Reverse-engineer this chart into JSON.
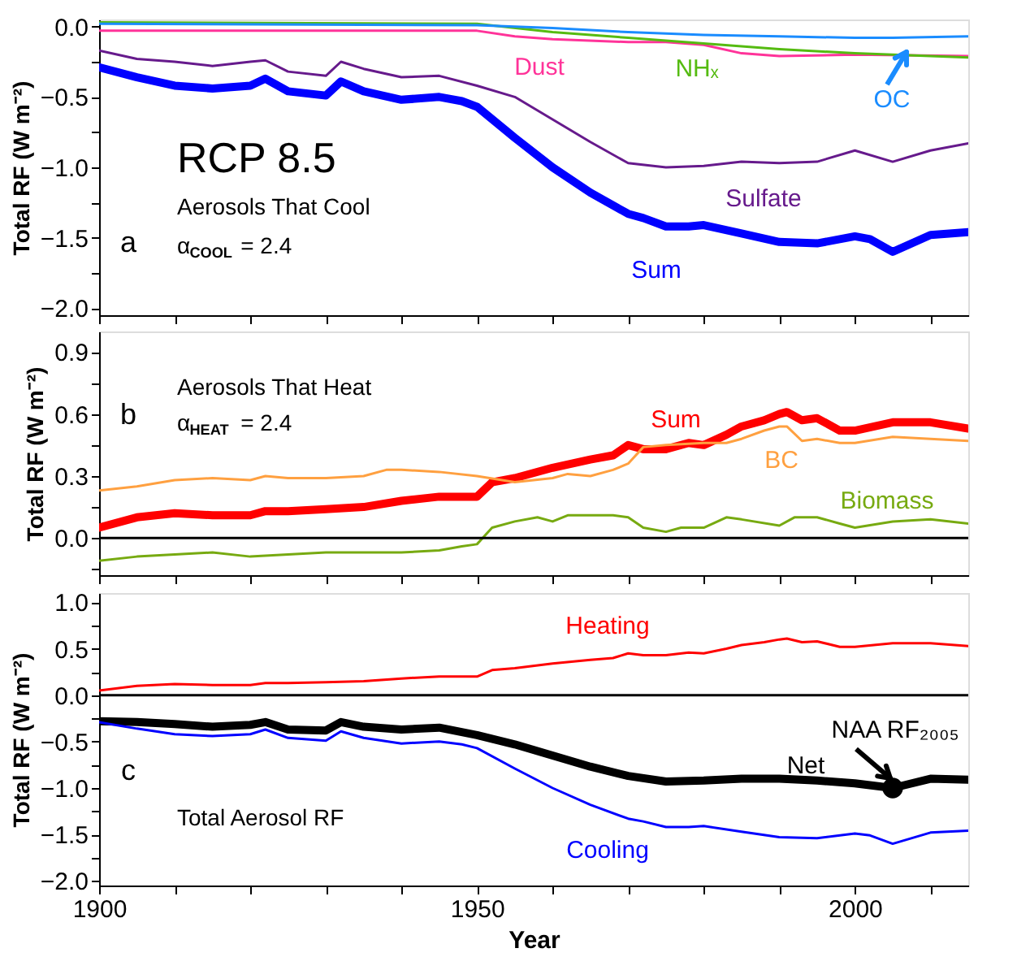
{
  "chart_data": [
    {
      "type": "line",
      "ylabel": "Total RF (W m⁻²)",
      "xlim": [
        1900,
        2015
      ],
      "ylim": [
        -2.05,
        0.05
      ],
      "tick_labels": "y",
      "grid": false,
      "xticks": [
        {
          "value": 1900,
          "label": null
        },
        {
          "value": 1910,
          "label": null
        },
        {
          "value": 1920,
          "label": null
        },
        {
          "value": 1930,
          "label": null
        },
        {
          "value": 1940,
          "label": null
        },
        {
          "value": 1950,
          "label": null
        },
        {
          "value": 1960,
          "label": null
        },
        {
          "value": 1970,
          "label": null
        },
        {
          "value": 1980,
          "label": null
        },
        {
          "value": 1990,
          "label": null
        },
        {
          "value": 2000,
          "label": null
        },
        {
          "value": 2010,
          "label": null
        }
      ],
      "yticks": [
        {
          "value": 0,
          "label": "0.0"
        },
        {
          "value": -0.25,
          "label": null
        },
        {
          "value": -0.5,
          "label": "−0.5"
        },
        {
          "value": -0.75,
          "label": null
        },
        {
          "value": -1.0,
          "label": "−1.0"
        },
        {
          "value": -1.25,
          "label": null
        },
        {
          "value": -1.5,
          "label": "−1.5"
        },
        {
          "value": -1.75,
          "label": null
        },
        {
          "value": -2.0,
          "label": "−2.0"
        }
      ],
      "annotations": [
        "a",
        "RCP 8.5",
        "Aerosols That Cool",
        "α$_{COOL}$ = 2.4"
      ],
      "series": [
        {
          "name": "Sum",
          "color": "#0000ff",
          "x": [
            1900,
            1905,
            1910,
            1915,
            1920,
            1922,
            1925,
            1930,
            1932,
            1935,
            1940,
            1945,
            1948,
            1950,
            1955,
            1960,
            1965,
            1970,
            1972,
            1975,
            1978,
            1980,
            1985,
            1990,
            1995,
            2000,
            2002,
            2005,
            2010,
            2015
          ],
          "values": [
            -0.29,
            -0.36,
            -0.42,
            -0.44,
            -0.42,
            -0.37,
            -0.46,
            -0.49,
            -0.39,
            -0.46,
            -0.52,
            -0.5,
            -0.53,
            -0.57,
            -0.79,
            -1.0,
            -1.18,
            -1.33,
            -1.36,
            -1.42,
            -1.42,
            -1.41,
            -1.47,
            -1.53,
            -1.54,
            -1.49,
            -1.51,
            -1.6,
            -1.48,
            -1.46
          ]
        },
        {
          "name": "Sulfate",
          "color": "#661a8c",
          "x": [
            1900,
            1905,
            1910,
            1915,
            1920,
            1922,
            1925,
            1930,
            1932,
            1935,
            1940,
            1945,
            1950,
            1955,
            1960,
            1965,
            1970,
            1975,
            1980,
            1985,
            1990,
            1995,
            2000,
            2005,
            2010,
            2015
          ],
          "values": [
            -0.17,
            -0.23,
            -0.25,
            -0.28,
            -0.25,
            -0.24,
            -0.32,
            -0.35,
            -0.25,
            -0.3,
            -0.36,
            -0.35,
            -0.42,
            -0.5,
            -0.66,
            -0.82,
            -0.97,
            -1.0,
            -0.99,
            -0.96,
            -0.97,
            -0.96,
            -0.88,
            -0.96,
            -0.88,
            -0.83
          ]
        },
        {
          "name": "Dust",
          "color": "#ff3399",
          "x": [
            1900,
            1920,
            1940,
            1950,
            1955,
            1960,
            1970,
            1975,
            1980,
            1985,
            1990,
            2000,
            2015
          ],
          "values": [
            -0.03,
            -0.03,
            -0.03,
            -0.03,
            -0.07,
            -0.09,
            -0.11,
            -0.11,
            -0.13,
            -0.19,
            -0.21,
            -0.2,
            -0.21
          ]
        },
        {
          "name": "NHₓ",
          "color": "#55bb11",
          "x": [
            1900,
            1950,
            1960,
            1970,
            1980,
            1990,
            2000,
            2015
          ],
          "values": [
            0.03,
            0.02,
            -0.04,
            -0.08,
            -0.12,
            -0.16,
            -0.19,
            -0.22
          ]
        },
        {
          "name": "OC",
          "color": "#1a8cff",
          "x": [
            1900,
            1950,
            1960,
            1970,
            1980,
            1990,
            2000,
            2005,
            2015
          ],
          "values": [
            0.02,
            0.01,
            -0.01,
            -0.04,
            -0.06,
            -0.07,
            -0.08,
            -0.08,
            -0.07
          ]
        }
      ]
    },
    {
      "type": "line",
      "ylabel": "Total RF (W m⁻²)",
      "xlim": [
        1900,
        2015
      ],
      "ylim": [
        -0.18,
        1.0
      ],
      "tick_labels": "y",
      "grid": false,
      "xticks": [
        {
          "value": 1900,
          "label": null
        },
        {
          "value": 1910,
          "label": null
        },
        {
          "value": 1920,
          "label": null
        },
        {
          "value": 1930,
          "label": null
        },
        {
          "value": 1940,
          "label": null
        },
        {
          "value": 1950,
          "label": null
        },
        {
          "value": 1960,
          "label": null
        },
        {
          "value": 1970,
          "label": null
        },
        {
          "value": 1980,
          "label": null
        },
        {
          "value": 1990,
          "label": null
        },
        {
          "value": 2000,
          "label": null
        },
        {
          "value": 2010,
          "label": null
        }
      ],
      "yticks": [
        {
          "value": -0.15,
          "label": null
        },
        {
          "value": 0,
          "label": "0.0"
        },
        {
          "value": 0.15,
          "label": null
        },
        {
          "value": 0.3,
          "label": "0.3"
        },
        {
          "value": 0.45,
          "label": null
        },
        {
          "value": 0.6,
          "label": "0.6"
        },
        {
          "value": 0.75,
          "label": null
        },
        {
          "value": 0.9,
          "label": "0.9"
        }
      ],
      "ref_lines": [
        {
          "axis": "y",
          "value": 0,
          "color": "#000000"
        }
      ],
      "annotations": [
        "b",
        "Aerosols That Heat",
        "α$_{HEAT}$ = 2.4"
      ],
      "series": [
        {
          "name": "Sum",
          "color": "#ff0000",
          "x": [
            1900,
            1905,
            1910,
            1915,
            1920,
            1922,
            1925,
            1930,
            1935,
            1940,
            1945,
            1950,
            1952,
            1955,
            1960,
            1965,
            1968,
            1970,
            1972,
            1975,
            1978,
            1980,
            1983,
            1985,
            1988,
            1990,
            1991,
            1993,
            1995,
            1998,
            2000,
            2005,
            2010,
            2015
          ],
          "values": [
            0.05,
            0.1,
            0.12,
            0.11,
            0.11,
            0.13,
            0.13,
            0.14,
            0.15,
            0.18,
            0.2,
            0.2,
            0.27,
            0.29,
            0.34,
            0.38,
            0.4,
            0.45,
            0.43,
            0.43,
            0.46,
            0.45,
            0.5,
            0.54,
            0.57,
            0.6,
            0.61,
            0.57,
            0.58,
            0.52,
            0.52,
            0.56,
            0.56,
            0.53
          ]
        },
        {
          "name": "BC",
          "color": "#ffa040",
          "x": [
            1900,
            1905,
            1910,
            1915,
            1920,
            1922,
            1925,
            1930,
            1935,
            1938,
            1940,
            1945,
            1950,
            1955,
            1960,
            1962,
            1965,
            1968,
            1970,
            1972,
            1975,
            1980,
            1983,
            1985,
            1988,
            1990,
            1991,
            1993,
            1995,
            1998,
            2000,
            2005,
            2010,
            2015
          ],
          "values": [
            0.23,
            0.25,
            0.28,
            0.29,
            0.28,
            0.3,
            0.29,
            0.29,
            0.3,
            0.33,
            0.33,
            0.32,
            0.3,
            0.27,
            0.29,
            0.31,
            0.3,
            0.33,
            0.36,
            0.44,
            0.45,
            0.46,
            0.46,
            0.48,
            0.52,
            0.54,
            0.54,
            0.47,
            0.48,
            0.46,
            0.46,
            0.49,
            0.48,
            0.47
          ]
        },
        {
          "name": "Biomass",
          "color": "#77aa11",
          "x": [
            1900,
            1905,
            1910,
            1915,
            1920,
            1925,
            1930,
            1935,
            1940,
            1945,
            1948,
            1950,
            1952,
            1955,
            1958,
            1960,
            1962,
            1965,
            1968,
            1970,
            1972,
            1975,
            1977,
            1980,
            1983,
            1985,
            1990,
            1992,
            1995,
            1998,
            2000,
            2005,
            2010,
            2015
          ],
          "values": [
            -0.11,
            -0.09,
            -0.08,
            -0.07,
            -0.09,
            -0.08,
            -0.07,
            -0.07,
            -0.07,
            -0.06,
            -0.04,
            -0.03,
            0.05,
            0.08,
            0.1,
            0.08,
            0.11,
            0.11,
            0.11,
            0.1,
            0.05,
            0.03,
            0.05,
            0.05,
            0.1,
            0.09,
            0.06,
            0.1,
            0.1,
            0.07,
            0.05,
            0.08,
            0.09,
            0.07
          ]
        }
      ]
    },
    {
      "type": "line",
      "ylabel": "Total RF (W m⁻²)",
      "xlabel": "Year",
      "xlim": [
        1900,
        2015
      ],
      "ylim": [
        -2.05,
        1.1
      ],
      "grid": false,
      "xticks": [
        {
          "value": 1900,
          "label": "1900"
        },
        {
          "value": 1910,
          "label": null
        },
        {
          "value": 1920,
          "label": null
        },
        {
          "value": 1930,
          "label": null
        },
        {
          "value": 1940,
          "label": null
        },
        {
          "value": 1950,
          "label": "1950"
        },
        {
          "value": 1960,
          "label": null
        },
        {
          "value": 1970,
          "label": null
        },
        {
          "value": 1980,
          "label": null
        },
        {
          "value": 1990,
          "label": null
        },
        {
          "value": 2000,
          "label": "2000"
        },
        {
          "value": 2010,
          "label": null
        }
      ],
      "yticks": [
        {
          "value": 1.0,
          "label": "1.0"
        },
        {
          "value": 0.75,
          "label": null
        },
        {
          "value": 0.5,
          "label": "0.5"
        },
        {
          "value": 0.25,
          "label": null
        },
        {
          "value": 0,
          "label": "0.0"
        },
        {
          "value": -0.25,
          "label": null
        },
        {
          "value": -0.5,
          "label": "−0.5"
        },
        {
          "value": -0.75,
          "label": null
        },
        {
          "value": -1.0,
          "label": "−1.0"
        },
        {
          "value": -1.25,
          "label": null
        },
        {
          "value": -1.5,
          "label": "−1.5"
        },
        {
          "value": -1.75,
          "label": null
        },
        {
          "value": -2.0,
          "label": "−2.0"
        }
      ],
      "ref_lines": [
        {
          "axis": "y",
          "value": 0,
          "color": "#000000"
        }
      ],
      "annotations": [
        "c",
        "Total Aerosol RF"
      ],
      "series": [
        {
          "name": "Heating",
          "color": "#ff0000",
          "x": [
            1900,
            1905,
            1910,
            1915,
            1920,
            1922,
            1925,
            1930,
            1935,
            1940,
            1945,
            1950,
            1952,
            1955,
            1960,
            1965,
            1968,
            1970,
            1972,
            1975,
            1978,
            1980,
            1983,
            1985,
            1988,
            1990,
            1991,
            1993,
            1995,
            1998,
            2000,
            2005,
            2010,
            2015
          ],
          "values": [
            0.05,
            0.1,
            0.12,
            0.11,
            0.11,
            0.13,
            0.13,
            0.14,
            0.15,
            0.18,
            0.2,
            0.2,
            0.27,
            0.29,
            0.34,
            0.38,
            0.4,
            0.45,
            0.43,
            0.43,
            0.46,
            0.45,
            0.5,
            0.54,
            0.57,
            0.6,
            0.61,
            0.57,
            0.58,
            0.52,
            0.52,
            0.56,
            0.56,
            0.53
          ]
        },
        {
          "name": "Net",
          "color": "#000000",
          "x": [
            1900,
            1905,
            1910,
            1915,
            1920,
            1922,
            1925,
            1930,
            1932,
            1935,
            1940,
            1945,
            1950,
            1955,
            1960,
            1965,
            1970,
            1975,
            1980,
            1985,
            1990,
            1995,
            2000,
            2005,
            2010,
            2015
          ],
          "values": [
            -0.28,
            -0.29,
            -0.31,
            -0.34,
            -0.32,
            -0.29,
            -0.37,
            -0.38,
            -0.29,
            -0.34,
            -0.37,
            -0.35,
            -0.43,
            -0.53,
            -0.65,
            -0.77,
            -0.87,
            -0.93,
            -0.92,
            -0.9,
            -0.9,
            -0.92,
            -0.95,
            -1.0,
            -0.9,
            -0.91
          ]
        },
        {
          "name": "Cooling",
          "color": "#0000ff",
          "x": [
            1900,
            1905,
            1910,
            1915,
            1920,
            1922,
            1925,
            1930,
            1932,
            1935,
            1940,
            1945,
            1948,
            1950,
            1955,
            1960,
            1965,
            1970,
            1972,
            1975,
            1978,
            1980,
            1985,
            1990,
            1995,
            2000,
            2002,
            2005,
            2010,
            2015
          ],
          "values": [
            -0.29,
            -0.36,
            -0.42,
            -0.44,
            -0.42,
            -0.37,
            -0.46,
            -0.49,
            -0.39,
            -0.46,
            -0.52,
            -0.5,
            -0.53,
            -0.57,
            -0.79,
            -1.0,
            -1.18,
            -1.33,
            -1.36,
            -1.42,
            -1.42,
            -1.41,
            -1.47,
            -1.53,
            -1.54,
            -1.49,
            -1.51,
            -1.6,
            -1.48,
            -1.46
          ]
        },
        {
          "name": "NAA RF₂₀₀₅",
          "type": "scatter",
          "marker": "circle",
          "color": "#000000",
          "x": [
            2005
          ],
          "values": [
            -1.0
          ]
        }
      ]
    }
  ]
}
